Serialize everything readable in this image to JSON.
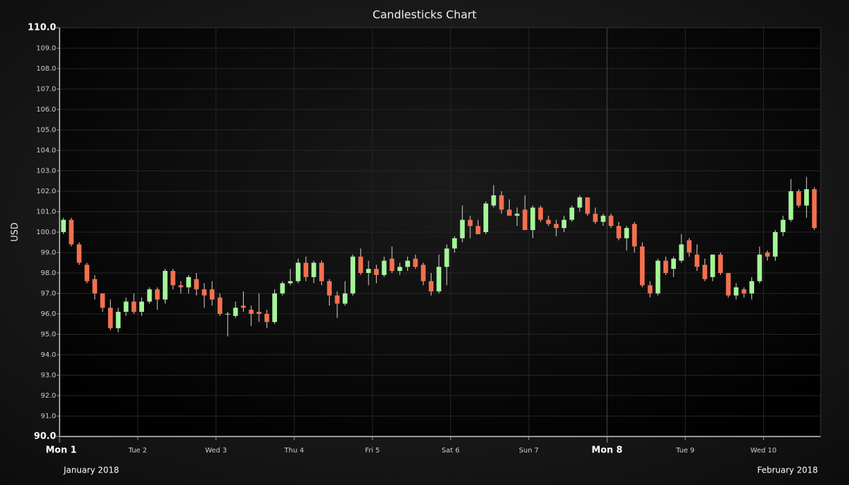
{
  "chart_data": {
    "type": "candlestick",
    "title": "Candlesticks Chart",
    "y_label": "USD",
    "x_period_labels": [
      "January 2018",
      "February 2018"
    ],
    "up_color": "#a6f59a",
    "down_color": "#f3704f",
    "grid": true,
    "xlim": [
      0,
      9.73
    ],
    "xticks": [
      {
        "value": 0,
        "label": "Mon 1"
      },
      {
        "value": 1,
        "label": "Tue 2"
      },
      {
        "value": 2,
        "label": "Wed 3"
      },
      {
        "value": 3,
        "label": "Thu 4"
      },
      {
        "value": 4,
        "label": "Fri 5"
      },
      {
        "value": 5,
        "label": "Sat 6"
      },
      {
        "value": 6,
        "label": "Sun 7"
      },
      {
        "value": 7,
        "label": "Mon 8"
      },
      {
        "value": 8,
        "label": "Tue 9"
      },
      {
        "value": 9,
        "label": "Wed 10"
      }
    ],
    "xticks_major": [
      0,
      7
    ],
    "ylim": [
      90,
      110
    ],
    "yticks": [
      {
        "value": 90,
        "label": "90.0"
      },
      {
        "value": 91,
        "label": "91.0"
      },
      {
        "value": 92,
        "label": "92.0"
      },
      {
        "value": 93,
        "label": "93.0"
      },
      {
        "value": 94,
        "label": "94.0"
      },
      {
        "value": 95,
        "label": "95.0"
      },
      {
        "value": 96,
        "label": "96.0"
      },
      {
        "value": 97,
        "label": "97.0"
      },
      {
        "value": 98,
        "label": "98.0"
      },
      {
        "value": 99,
        "label": "99.0"
      },
      {
        "value": 100,
        "label": "100.0"
      },
      {
        "value": 101,
        "label": "101.0"
      },
      {
        "value": 102,
        "label": "102.0"
      },
      {
        "value": 103,
        "label": "103.0"
      },
      {
        "value": 104,
        "label": "104.0"
      },
      {
        "value": 105,
        "label": "105.0"
      },
      {
        "value": 106,
        "label": "106.0"
      },
      {
        "value": 107,
        "label": "107.0"
      },
      {
        "value": 108,
        "label": "108.0"
      },
      {
        "value": 109,
        "label": "109.0"
      },
      {
        "value": 110,
        "label": "110.0"
      }
    ],
    "yticks_major": [
      90,
      110
    ],
    "x": [
      0.05,
      0.15,
      0.25,
      0.35,
      0.45,
      0.55,
      0.65,
      0.75,
      0.85,
      0.95,
      1.05,
      1.15,
      1.25,
      1.35,
      1.45,
      1.55,
      1.65,
      1.75,
      1.85,
      1.95,
      2.05,
      2.15,
      2.25,
      2.35,
      2.45,
      2.55,
      2.65,
      2.75,
      2.85,
      2.95,
      3.05,
      3.15,
      3.25,
      3.35,
      3.45,
      3.55,
      3.65,
      3.75,
      3.85,
      3.95,
      4.05,
      4.15,
      4.25,
      4.35,
      4.45,
      4.55,
      4.65,
      4.75,
      4.85,
      4.95,
      5.05,
      5.15,
      5.25,
      5.35,
      5.45,
      5.55,
      5.65,
      5.75,
      5.85,
      5.95,
      6.05,
      6.15,
      6.25,
      6.35,
      6.45,
      6.55,
      6.65,
      6.75,
      6.85,
      6.95,
      7.05,
      7.15,
      7.25,
      7.35,
      7.45,
      7.55,
      7.65,
      7.75,
      7.85,
      7.95,
      8.05,
      8.15,
      8.25,
      8.35,
      8.45,
      8.55,
      8.65,
      8.75,
      8.85,
      8.95,
      9.05,
      9.15,
      9.25,
      9.35,
      9.45,
      9.55,
      9.65
    ],
    "open": [
      100.0,
      100.6,
      99.4,
      98.4,
      97.7,
      97.0,
      96.3,
      95.3,
      96.1,
      96.6,
      96.1,
      96.6,
      97.2,
      96.7,
      98.1,
      97.4,
      97.3,
      97.7,
      97.2,
      97.2,
      96.8,
      96.0,
      95.9,
      96.4,
      96.2,
      96.1,
      96.0,
      95.6,
      97.0,
      97.5,
      97.6,
      98.5,
      97.8,
      98.5,
      97.6,
      96.9,
      96.5,
      97.0,
      98.8,
      98.0,
      98.2,
      97.9,
      98.7,
      98.1,
      98.3,
      98.7,
      98.4,
      97.6,
      97.1,
      98.3,
      99.2,
      99.7,
      100.6,
      100.3,
      100.0,
      101.3,
      101.8,
      101.1,
      100.8,
      101.1,
      100.1,
      101.2,
      100.6,
      100.4,
      100.2,
      100.6,
      101.2,
      101.7,
      100.9,
      100.5,
      100.8,
      100.3,
      99.7,
      100.4,
      99.3,
      97.4,
      97.0,
      98.6,
      98.2,
      98.6,
      99.6,
      98.9,
      98.4,
      97.8,
      98.9,
      98.0,
      96.9,
      97.2,
      97.0,
      97.6,
      99.0,
      98.8,
      100.0,
      100.6,
      102.0,
      101.3,
      102.1
    ],
    "high": [
      100.7,
      100.7,
      99.5,
      98.5,
      97.9,
      97.0,
      96.7,
      96.3,
      96.8,
      97.0,
      96.8,
      97.3,
      97.3,
      98.2,
      98.2,
      97.6,
      97.9,
      98.0,
      97.5,
      97.6,
      97.0,
      96.1,
      96.6,
      97.1,
      96.4,
      97.0,
      96.2,
      97.2,
      97.6,
      98.2,
      98.7,
      98.8,
      98.6,
      98.6,
      97.7,
      97.1,
      97.6,
      98.9,
      99.2,
      98.6,
      98.4,
      98.8,
      99.3,
      98.5,
      98.8,
      98.9,
      98.5,
      98.0,
      98.9,
      99.4,
      99.8,
      101.3,
      100.8,
      100.6,
      101.5,
      102.3,
      102.0,
      101.6,
      101.2,
      101.8,
      101.3,
      101.3,
      100.8,
      100.6,
      100.8,
      101.3,
      101.8,
      101.7,
      101.2,
      100.9,
      100.9,
      100.5,
      100.3,
      100.5,
      99.5,
      97.6,
      98.7,
      98.8,
      98.8,
      99.9,
      99.7,
      99.4,
      98.7,
      98.9,
      99.0,
      98.0,
      97.5,
      97.3,
      97.8,
      99.3,
      99.1,
      100.1,
      100.8,
      102.6,
      102.1,
      102.7,
      102.2
    ],
    "low": [
      99.9,
      99.3,
      98.4,
      97.5,
      96.7,
      96.1,
      95.2,
      95.1,
      95.9,
      96.0,
      95.9,
      96.5,
      96.2,
      96.5,
      97.2,
      97.0,
      97.0,
      96.9,
      96.3,
      96.4,
      95.9,
      94.9,
      95.8,
      96.1,
      95.4,
      95.6,
      95.3,
      95.5,
      96.9,
      97.4,
      97.5,
      97.6,
      97.5,
      97.4,
      96.4,
      95.8,
      96.4,
      96.9,
      97.9,
      97.4,
      97.5,
      97.8,
      98.0,
      97.9,
      98.1,
      98.2,
      97.4,
      96.9,
      97.0,
      97.4,
      99.0,
      99.5,
      99.7,
      99.9,
      99.9,
      101.2,
      100.9,
      100.8,
      100.3,
      100.2,
      99.7,
      100.5,
      100.3,
      99.8,
      100.0,
      100.5,
      101.0,
      100.8,
      100.4,
      100.3,
      100.2,
      99.6,
      99.1,
      99.0,
      97.3,
      96.8,
      96.9,
      97.9,
      97.8,
      98.5,
      98.8,
      98.1,
      97.6,
      97.6,
      97.9,
      96.8,
      96.7,
      96.8,
      96.7,
      97.5,
      98.6,
      98.6,
      99.8,
      100.5,
      101.2,
      100.7,
      100.1
    ],
    "close": [
      100.6,
      99.4,
      98.5,
      97.6,
      97.0,
      96.3,
      95.3,
      96.1,
      96.6,
      96.1,
      96.6,
      97.2,
      96.7,
      98.1,
      97.4,
      97.3,
      97.8,
      97.2,
      96.9,
      96.7,
      96.0,
      96.0,
      96.3,
      96.3,
      96.0,
      96.0,
      95.6,
      97.0,
      97.5,
      97.6,
      98.5,
      97.8,
      98.5,
      97.6,
      96.9,
      96.5,
      97.0,
      98.8,
      98.0,
      98.2,
      97.9,
      98.6,
      98.1,
      98.3,
      98.6,
      98.3,
      97.6,
      97.1,
      98.3,
      99.2,
      99.7,
      100.6,
      100.3,
      99.9,
      101.4,
      101.8,
      101.1,
      100.8,
      100.9,
      100.1,
      101.2,
      100.6,
      100.4,
      100.2,
      100.6,
      101.2,
      101.7,
      100.9,
      100.5,
      100.8,
      100.3,
      99.7,
      100.2,
      99.3,
      97.4,
      97.0,
      98.6,
      98.0,
      98.7,
      99.4,
      99.0,
      98.3,
      97.7,
      98.9,
      98.0,
      96.9,
      97.3,
      97.0,
      97.6,
      98.9,
      98.8,
      100.0,
      100.6,
      102.0,
      101.3,
      102.1,
      100.2
    ]
  }
}
